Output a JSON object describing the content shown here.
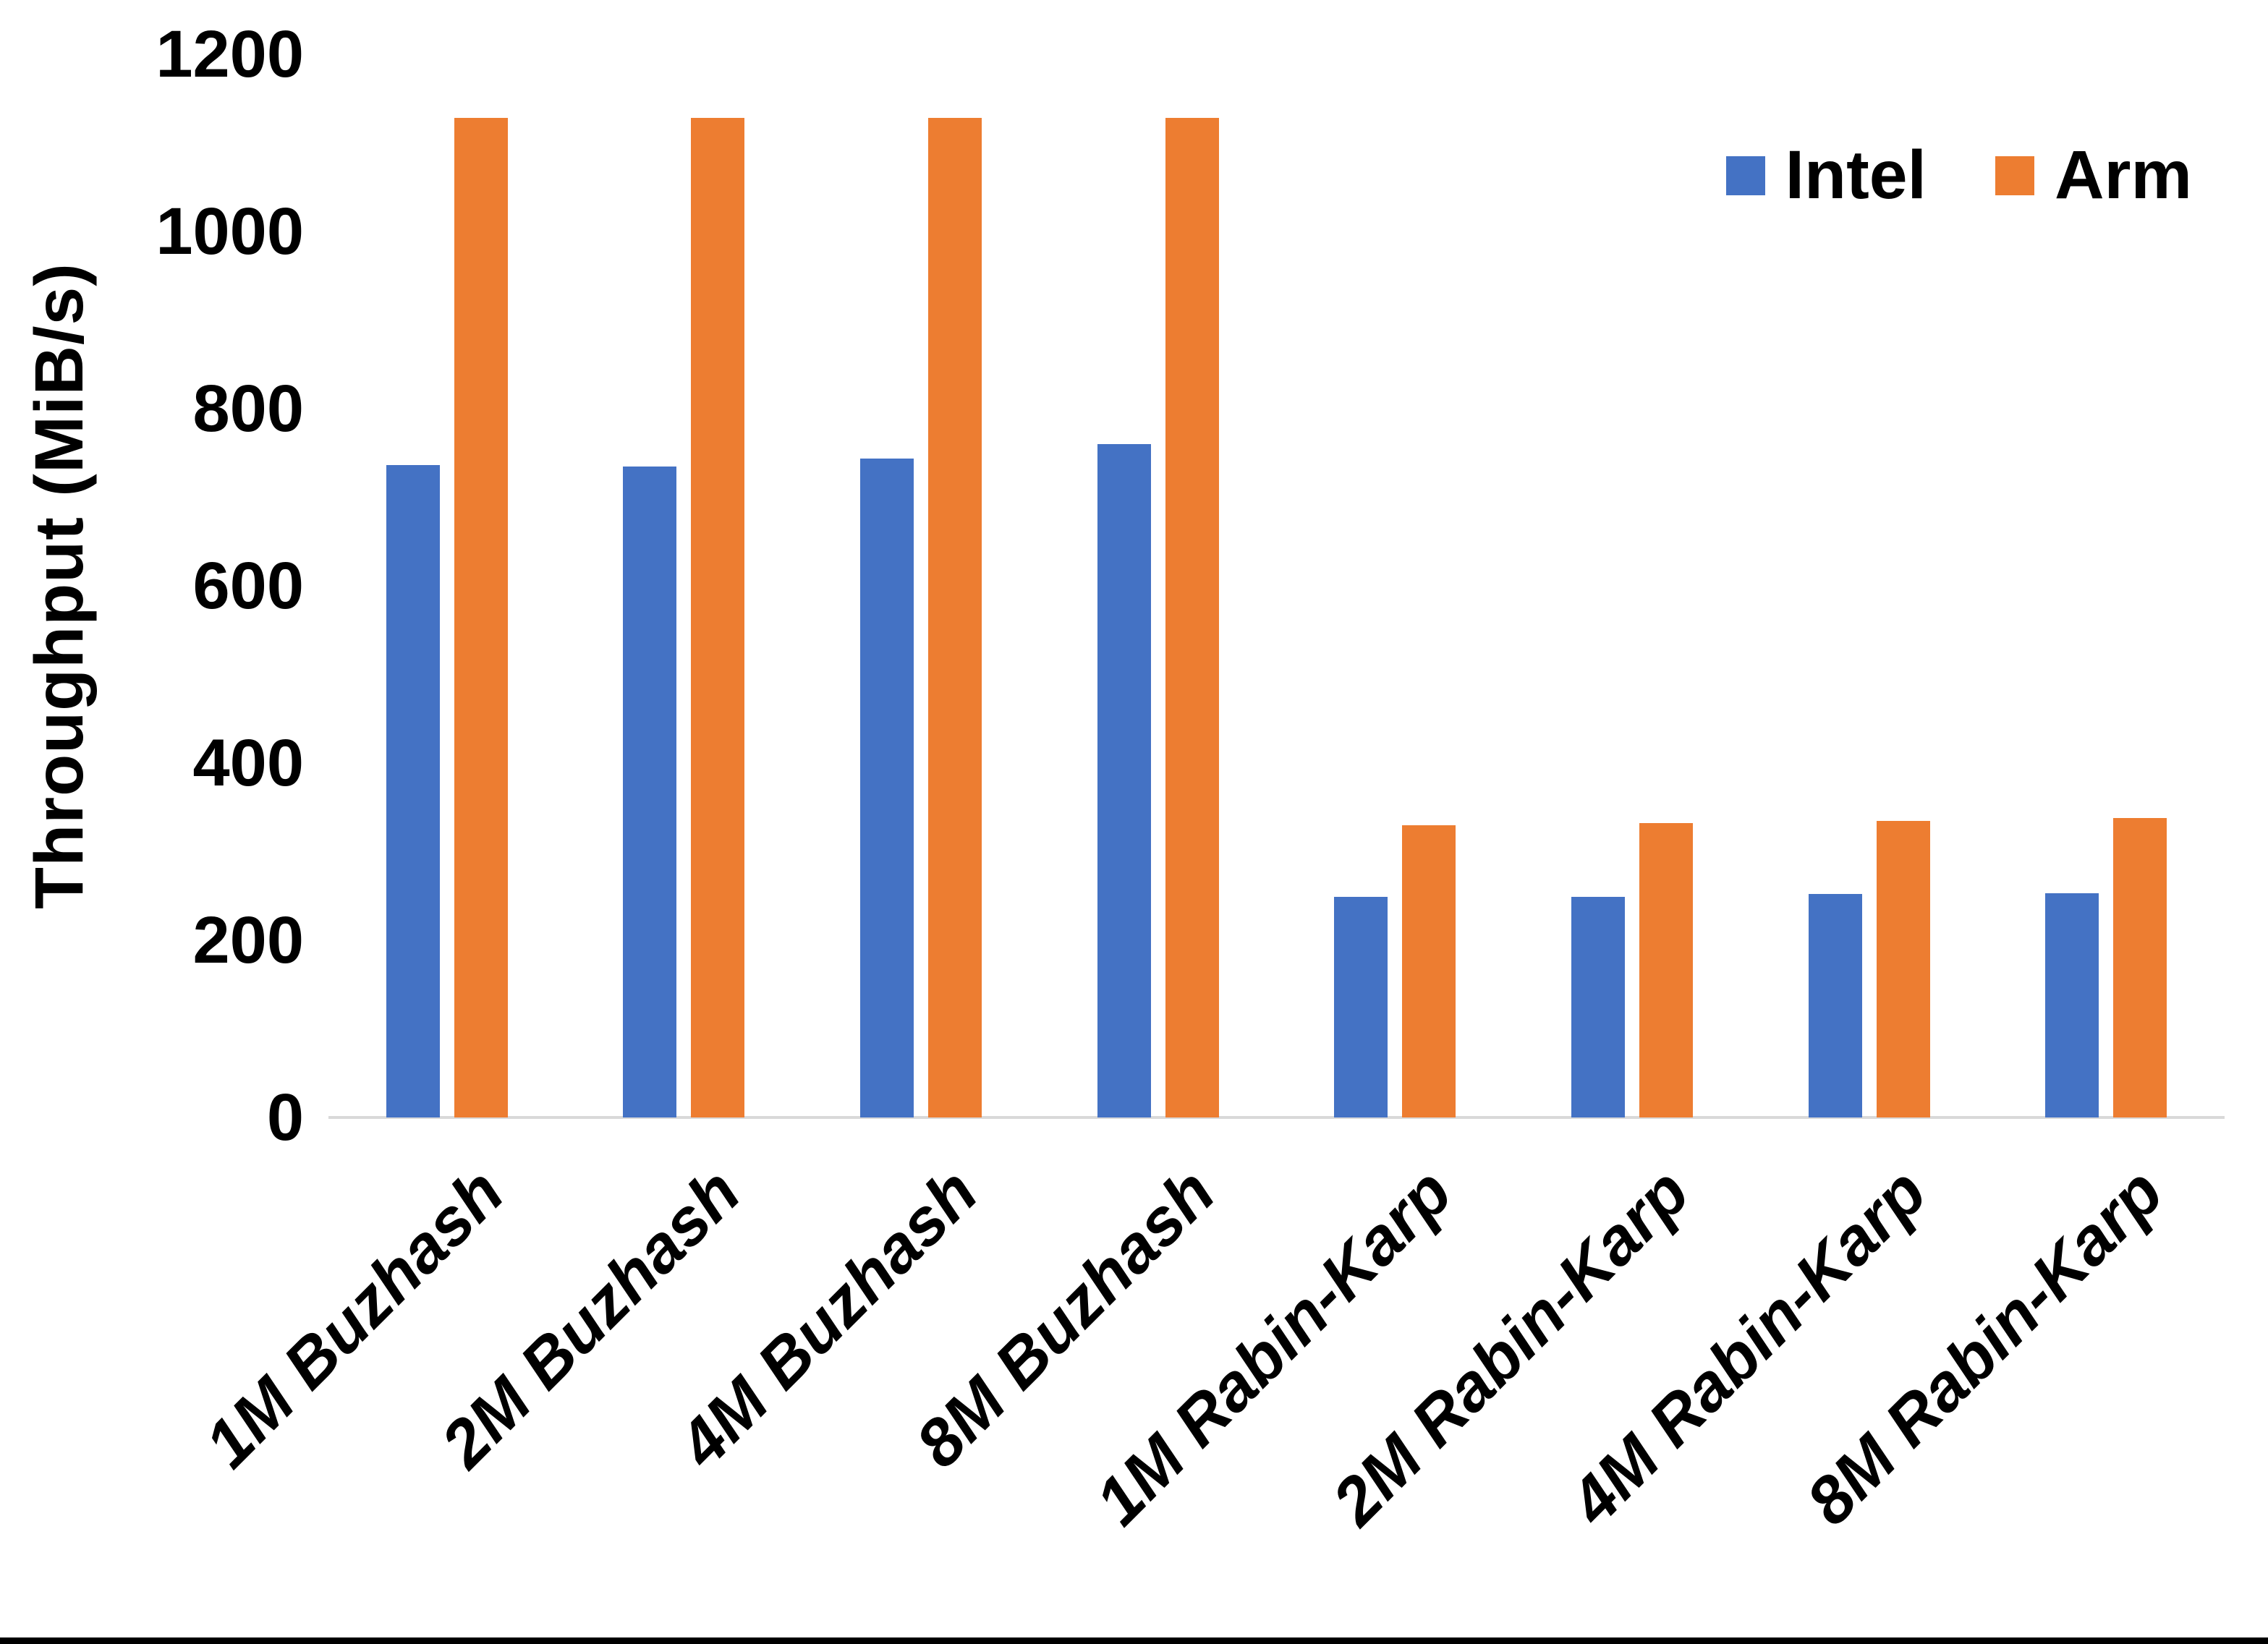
{
  "chart_data": {
    "type": "bar",
    "title": "",
    "ylabel": "Throughput (MiB/s)",
    "xlabel": "",
    "categories": [
      "1M Buzhash",
      "2M Buzhash",
      "4M Buzhash",
      "8M Buzhash",
      "1M Rabin-Karp",
      "2M Rabin-Karp",
      "4M Rabin-Karp",
      "8M Rabin-Karp"
    ],
    "series": [
      {
        "name": "Intel",
        "color": "#4472C4",
        "values": [
          736,
          735,
          744,
          760,
          249,
          249,
          252,
          253
        ]
      },
      {
        "name": "Arm",
        "color": "#ED7D31",
        "values": [
          1128,
          1128,
          1128,
          1128,
          330,
          332,
          335,
          338
        ]
      }
    ],
    "ylim": [
      0,
      1200
    ],
    "yticks": [
      0,
      200,
      400,
      600,
      800,
      1000,
      1200
    ],
    "grid": false,
    "legend_position": "top-right",
    "colors": {
      "axis_line": "#D9D9D9",
      "text": "#000000",
      "background": "#FFFFFF",
      "bottom_border": "#000000"
    }
  }
}
